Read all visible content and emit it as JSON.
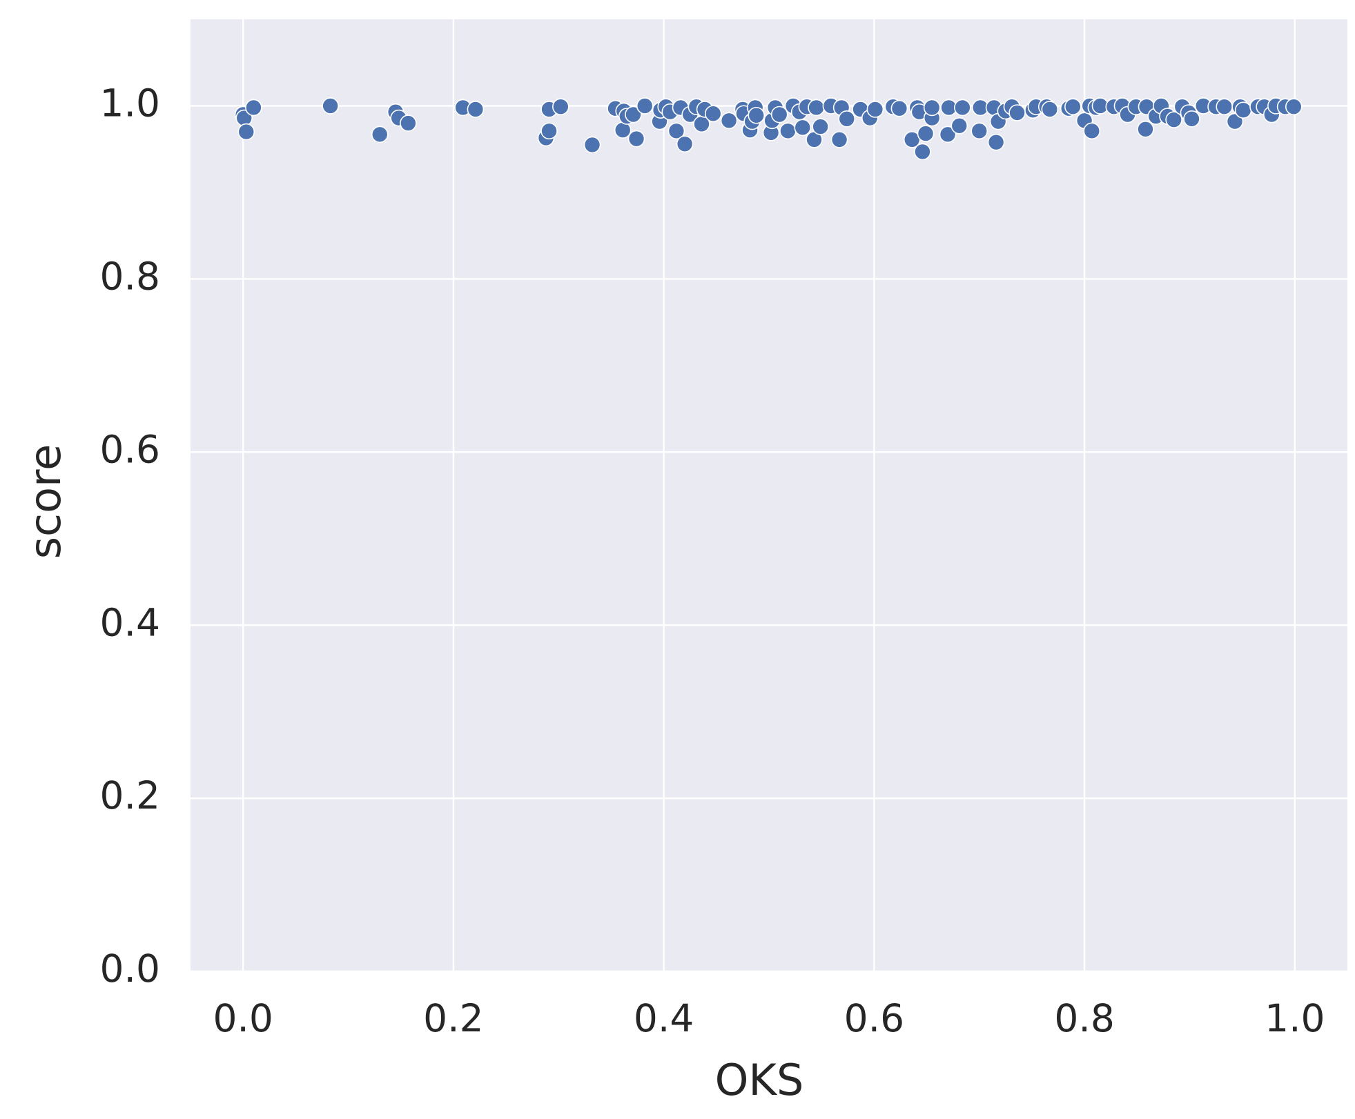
{
  "chart_data": {
    "type": "scatter",
    "x_label": "OKS",
    "y_label": "score",
    "color": "#4c72b0",
    "background": "#eaeaf2",
    "grid": true,
    "xlim": [
      -0.05,
      1.05
    ],
    "ylim": [
      0,
      1.1
    ],
    "xticks": [
      {
        "value": 0,
        "label": "0.0"
      },
      0.2,
      0.4,
      0.6,
      0.8,
      {
        "value": 1,
        "label": "1.0"
      }
    ],
    "yticks": [
      {
        "value": 0,
        "label": "0.0"
      },
      0.2,
      0.4,
      0.6,
      0.8,
      {
        "value": 1,
        "label": "1.0"
      }
    ],
    "x": [
      0.0,
      0.001,
      0.003,
      0.01,
      0.083,
      0.13,
      0.145,
      0.148,
      0.157,
      0.209,
      0.221,
      0.288,
      0.291,
      0.291,
      0.302,
      0.332,
      0.354,
      0.361,
      0.362,
      0.365,
      0.371,
      0.374,
      0.382,
      0.396,
      0.397,
      0.402,
      0.406,
      0.412,
      0.416,
      0.42,
      0.425,
      0.431,
      0.436,
      0.439,
      0.447,
      0.462,
      0.475,
      0.476,
      0.482,
      0.484,
      0.487,
      0.488,
      0.502,
      0.503,
      0.506,
      0.51,
      0.518,
      0.523,
      0.529,
      0.532,
      0.536,
      0.543,
      0.545,
      0.549,
      0.559,
      0.567,
      0.569,
      0.574,
      0.587,
      0.596,
      0.601,
      0.618,
      0.624,
      0.636,
      0.641,
      0.643,
      0.646,
      0.649,
      0.655,
      0.655,
      0.67,
      0.671,
      0.681,
      0.684,
      0.7,
      0.701,
      0.714,
      0.716,
      0.718,
      0.725,
      0.731,
      0.736,
      0.751,
      0.754,
      0.764,
      0.767,
      0.785,
      0.789,
      0.8,
      0.805,
      0.807,
      0.811,
      0.815,
      0.828,
      0.836,
      0.841,
      0.849,
      0.858,
      0.859,
      0.868,
      0.873,
      0.879,
      0.885,
      0.893,
      0.899,
      0.902,
      0.913,
      0.925,
      0.933,
      0.943,
      0.948,
      0.951,
      0.965,
      0.971,
      0.978,
      0.982,
      0.991,
      0.999
    ],
    "y": [
      0.99,
      0.986,
      0.97,
      0.998,
      1.0,
      0.967,
      0.993,
      0.986,
      0.98,
      0.998,
      0.996,
      0.963,
      0.971,
      0.996,
      0.999,
      0.955,
      0.997,
      0.972,
      0.994,
      0.988,
      0.99,
      0.962,
      1.0,
      0.982,
      0.995,
      0.999,
      0.993,
      0.971,
      0.998,
      0.956,
      0.99,
      0.999,
      0.979,
      0.996,
      0.991,
      0.983,
      0.996,
      0.991,
      0.972,
      0.982,
      0.998,
      0.989,
      0.969,
      0.983,
      0.998,
      0.99,
      0.971,
      1.0,
      0.993,
      0.975,
      0.999,
      0.961,
      0.998,
      0.976,
      1.0,
      0.961,
      0.998,
      0.985,
      0.996,
      0.986,
      0.996,
      0.999,
      0.997,
      0.961,
      0.998,
      0.993,
      0.947,
      0.968,
      0.986,
      0.998,
      0.967,
      0.998,
      0.977,
      0.998,
      0.971,
      0.998,
      0.998,
      0.958,
      0.982,
      0.994,
      0.999,
      0.992,
      0.995,
      0.999,
      0.999,
      0.996,
      0.997,
      0.999,
      0.983,
      1.0,
      0.971,
      0.998,
      1.0,
      0.999,
      1.0,
      0.99,
      0.999,
      0.973,
      0.999,
      0.988,
      1.0,
      0.988,
      0.984,
      0.999,
      0.992,
      0.985,
      1.0,
      0.999,
      0.999,
      0.982,
      0.999,
      0.995,
      0.999,
      0.999,
      0.99,
      1.0,
      0.999,
      0.999
    ]
  }
}
